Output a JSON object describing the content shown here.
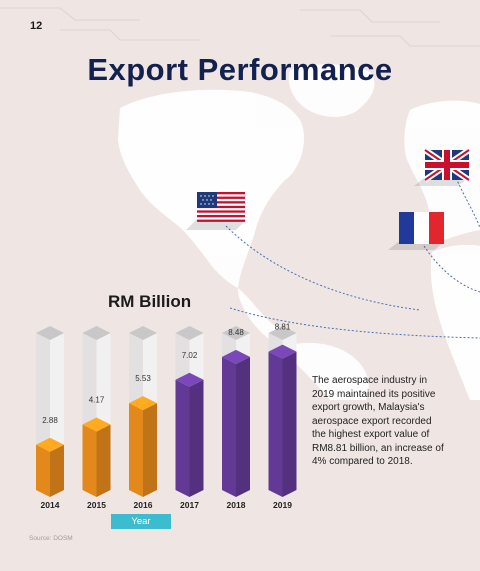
{
  "page_number": "12",
  "title": "Export Performance",
  "body_text": "The aerospace industry in 2019 maintained its positive export growth, Malaysia's aerospace export recorded the highest export value of RM8.81 billion, an increase of 4% compared to 2018.",
  "source": "Source: DOSM",
  "flags": [
    "usa-flag",
    "uk-flag",
    "france-flag"
  ],
  "colors": {
    "orange": "#f7941d",
    "purple": "#6a3fa3",
    "title": "#13214f",
    "year_badge": "#3bbccf",
    "background": "#efe6e3"
  },
  "chart_data": {
    "type": "bar",
    "title": "RM Billion",
    "xlabel": "Year",
    "ylabel": "",
    "categories": [
      "2014",
      "2015",
      "2016",
      "2017",
      "2018",
      "2019"
    ],
    "values": [
      2.88,
      4.17,
      5.53,
      7.02,
      8.48,
      8.81
    ],
    "bar_colors": [
      "#f7941d",
      "#f7941d",
      "#f7941d",
      "#6a3fa3",
      "#6a3fa3",
      "#6a3fa3"
    ],
    "ylim": [
      0,
      10
    ],
    "style": "3d-columns"
  }
}
